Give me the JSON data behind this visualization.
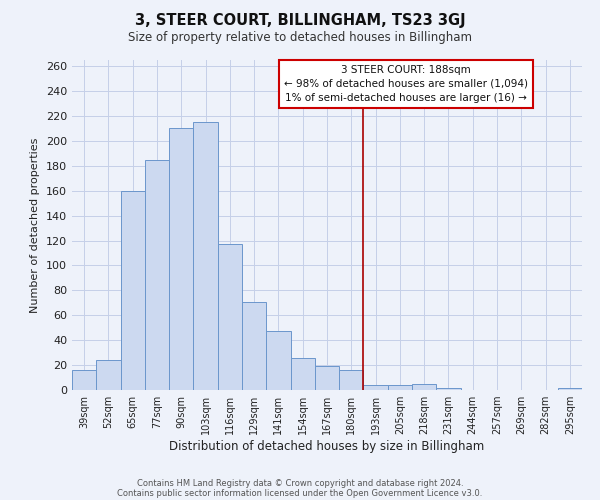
{
  "title": "3, STEER COURT, BILLINGHAM, TS23 3GJ",
  "subtitle": "Size of property relative to detached houses in Billingham",
  "xlabel": "Distribution of detached houses by size in Billingham",
  "ylabel": "Number of detached properties",
  "categories": [
    "39sqm",
    "52sqm",
    "65sqm",
    "77sqm",
    "90sqm",
    "103sqm",
    "116sqm",
    "129sqm",
    "141sqm",
    "154sqm",
    "167sqm",
    "180sqm",
    "193sqm",
    "205sqm",
    "218sqm",
    "231sqm",
    "244sqm",
    "257sqm",
    "269sqm",
    "282sqm",
    "295sqm"
  ],
  "values": [
    16,
    24,
    160,
    185,
    210,
    215,
    117,
    71,
    47,
    26,
    19,
    16,
    4,
    4,
    5,
    2,
    0,
    0,
    0,
    0,
    2
  ],
  "bar_color": "#ccd9f0",
  "bar_edge_color": "#6b96cc",
  "grid_color": "#c5cfe8",
  "background_color": "#eef2fa",
  "vline_color": "#aa0000",
  "annotation_title": "3 STEER COURT: 188sqm",
  "annotation_line1": "← 98% of detached houses are smaller (1,094)",
  "annotation_line2": "1% of semi-detached houses are larger (16) →",
  "annotation_box_color": "#ffffff",
  "annotation_box_edge": "#cc0000",
  "footer1": "Contains HM Land Registry data © Crown copyright and database right 2024.",
  "footer2": "Contains public sector information licensed under the Open Government Licence v3.0.",
  "ylim": [
    0,
    265
  ],
  "yticks": [
    0,
    20,
    40,
    60,
    80,
    100,
    120,
    140,
    160,
    180,
    200,
    220,
    240,
    260
  ],
  "vline_index": 12
}
